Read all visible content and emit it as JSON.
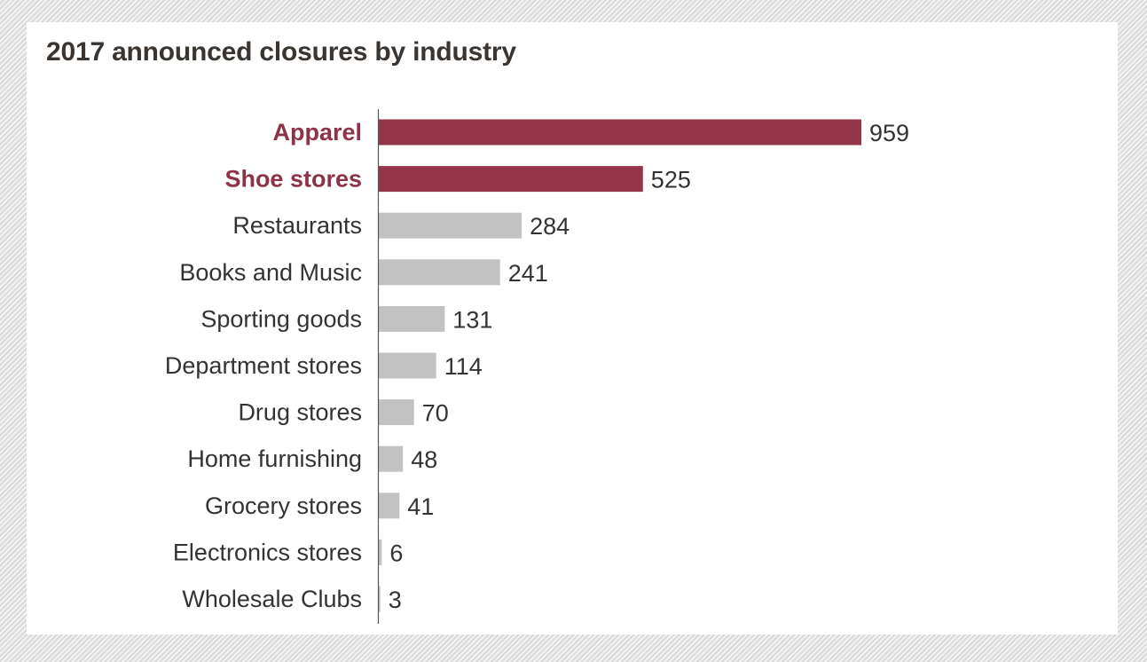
{
  "chart_data": {
    "type": "bar",
    "orientation": "horizontal",
    "title": "2017 announced closures by industry",
    "xlabel": "",
    "ylabel": "",
    "categories": [
      "Apparel",
      "Shoe stores",
      "Restaurants",
      "Books and Music",
      "Sporting goods",
      "Department stores",
      "Drug stores",
      "Home furnishing",
      "Grocery stores",
      "Electronics stores",
      "Wholesale Clubs"
    ],
    "values": [
      959,
      525,
      284,
      241,
      131,
      114,
      70,
      48,
      41,
      6,
      3
    ],
    "value_labels": [
      "959",
      "525",
      "284",
      "241",
      "131",
      "114",
      "70",
      "48",
      "41",
      "6",
      "3"
    ],
    "highlighted": [
      "Apparel",
      "Shoe stores"
    ],
    "xlim": [
      0,
      959
    ],
    "grid": false,
    "legend": "none",
    "colors": {
      "highlight": "#93364a",
      "default": "#c2c2c2",
      "highlight_text": "#8e3347",
      "axis": "#555555"
    }
  }
}
